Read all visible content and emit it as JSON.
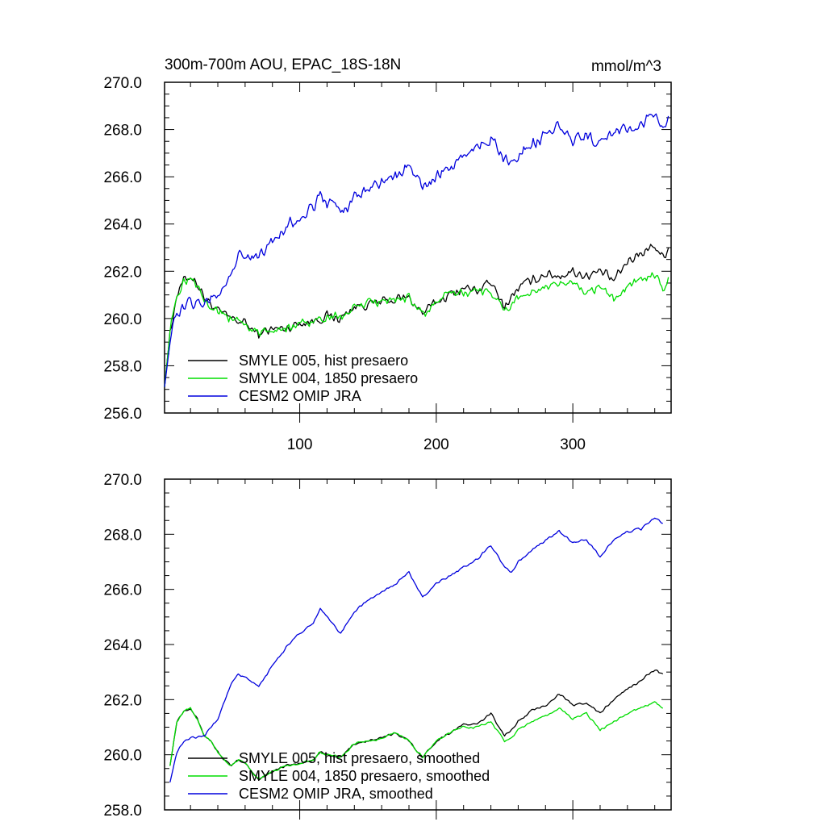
{
  "chart_data": [
    {
      "type": "line",
      "title": "300m-700m AOU, EPAC_18S-18N",
      "units": "mmol/m^3",
      "xlim": [
        1,
        372
      ],
      "ylim": [
        256.0,
        270.0
      ],
      "x_ticks": [
        100,
        200,
        300
      ],
      "y_ticks": [
        "256.0",
        "258.0",
        "260.0",
        "262.0",
        "264.0",
        "266.0",
        "268.0",
        "270.0"
      ],
      "legend_position": "lower-left",
      "series": [
        {
          "name": "SMYLE 005, hist presaero",
          "color": "#000000",
          "keypoints": [
            [
              1,
              257.1
            ],
            [
              5,
              259.4
            ],
            [
              10,
              261.0
            ],
            [
              15,
              261.6
            ],
            [
              20,
              261.8
            ],
            [
              25,
              261.5
            ],
            [
              30,
              260.9
            ],
            [
              35,
              260.6
            ],
            [
              40,
              260.3
            ],
            [
              50,
              260.0
            ],
            [
              60,
              259.8
            ],
            [
              70,
              259.3
            ],
            [
              75,
              259.5
            ],
            [
              90,
              259.6
            ],
            [
              100,
              259.8
            ],
            [
              110,
              259.9
            ],
            [
              120,
              260.1
            ],
            [
              130,
              260.0
            ],
            [
              140,
              260.5
            ],
            [
              150,
              260.6
            ],
            [
              160,
              260.7
            ],
            [
              170,
              260.8
            ],
            [
              180,
              260.9
            ],
            [
              190,
              260.2
            ],
            [
              200,
              260.7
            ],
            [
              210,
              261.0
            ],
            [
              220,
              261.3
            ],
            [
              230,
              261.2
            ],
            [
              240,
              261.5
            ],
            [
              250,
              260.5
            ],
            [
              255,
              260.9
            ],
            [
              260,
              261.3
            ],
            [
              270,
              261.6
            ],
            [
              280,
              261.9
            ],
            [
              290,
              261.8
            ],
            [
              300,
              262.0
            ],
            [
              310,
              261.8
            ],
            [
              320,
              262.0
            ],
            [
              330,
              261.6
            ],
            [
              340,
              262.4
            ],
            [
              350,
              262.8
            ],
            [
              360,
              263.1
            ],
            [
              366,
              262.6
            ],
            [
              370,
              263.0
            ]
          ],
          "noise": 0.25
        },
        {
          "name": "SMYLE 004, 1850 presaero",
          "color": "#00dd00",
          "keypoints": [
            [
              1,
              257.1
            ],
            [
              5,
              259.4
            ],
            [
              10,
              261.0
            ],
            [
              15,
              261.6
            ],
            [
              20,
              261.8
            ],
            [
              25,
              261.5
            ],
            [
              30,
              260.9
            ],
            [
              35,
              260.6
            ],
            [
              40,
              260.3
            ],
            [
              50,
              260.0
            ],
            [
              60,
              259.8
            ],
            [
              70,
              259.3
            ],
            [
              75,
              259.5
            ],
            [
              90,
              259.6
            ],
            [
              100,
              259.8
            ],
            [
              110,
              259.9
            ],
            [
              120,
              260.1
            ],
            [
              130,
              260.0
            ],
            [
              140,
              260.5
            ],
            [
              150,
              260.6
            ],
            [
              160,
              260.7
            ],
            [
              170,
              260.8
            ],
            [
              180,
              260.9
            ],
            [
              190,
              260.2
            ],
            [
              200,
              260.7
            ],
            [
              210,
              261.0
            ],
            [
              220,
              261.1
            ],
            [
              230,
              261.2
            ],
            [
              240,
              261.2
            ],
            [
              250,
              260.3
            ],
            [
              255,
              260.6
            ],
            [
              260,
              260.9
            ],
            [
              270,
              261.1
            ],
            [
              280,
              261.3
            ],
            [
              290,
              261.4
            ],
            [
              300,
              261.5
            ],
            [
              310,
              261.1
            ],
            [
              320,
              261.3
            ],
            [
              330,
              260.9
            ],
            [
              340,
              261.4
            ],
            [
              350,
              261.7
            ],
            [
              360,
              261.8
            ],
            [
              366,
              261.2
            ],
            [
              370,
              261.8
            ]
          ],
          "noise": 0.25
        },
        {
          "name": "CESM2 OMIP JRA",
          "color": "#0000dd",
          "keypoints": [
            [
              1,
              257.1
            ],
            [
              5,
              259.0
            ],
            [
              10,
              260.3
            ],
            [
              15,
              260.4
            ],
            [
              20,
              260.7
            ],
            [
              30,
              260.6
            ],
            [
              40,
              261.0
            ],
            [
              50,
              261.9
            ],
            [
              55,
              262.8
            ],
            [
              60,
              262.6
            ],
            [
              70,
              262.6
            ],
            [
              80,
              263.2
            ],
            [
              90,
              263.9
            ],
            [
              100,
              264.3
            ],
            [
              110,
              264.7
            ],
            [
              115,
              265.3
            ],
            [
              120,
              264.9
            ],
            [
              130,
              264.5
            ],
            [
              140,
              265.1
            ],
            [
              150,
              265.5
            ],
            [
              160,
              265.8
            ],
            [
              170,
              266.0
            ],
            [
              180,
              266.5
            ],
            [
              190,
              265.5
            ],
            [
              200,
              266.0
            ],
            [
              210,
              266.4
            ],
            [
              220,
              266.9
            ],
            [
              230,
              267.2
            ],
            [
              240,
              267.6
            ],
            [
              250,
              266.8
            ],
            [
              255,
              266.6
            ],
            [
              260,
              267.0
            ],
            [
              270,
              267.3
            ],
            [
              280,
              267.8
            ],
            [
              290,
              268.1
            ],
            [
              300,
              267.6
            ],
            [
              310,
              267.8
            ],
            [
              320,
              267.3
            ],
            [
              330,
              267.9
            ],
            [
              340,
              268.1
            ],
            [
              350,
              268.2
            ],
            [
              360,
              268.7
            ],
            [
              366,
              268.0
            ],
            [
              370,
              268.4
            ]
          ],
          "noise": 0.3
        }
      ]
    },
    {
      "type": "line",
      "title": "",
      "units": "",
      "xlim": [
        1,
        372
      ],
      "ylim": [
        258.0,
        270.0
      ],
      "x_ticks": [
        100,
        200,
        300
      ],
      "y_ticks": [
        "258.0",
        "260.0",
        "262.0",
        "264.0",
        "266.0",
        "268.0",
        "270.0"
      ],
      "legend_position": "lower-left",
      "series": [
        {
          "name": "SMYLE 005, hist presaero, smoothed",
          "color": "#000000",
          "keypoints": [
            [
              5,
              259.6
            ],
            [
              10,
              261.2
            ],
            [
              15,
              261.6
            ],
            [
              20,
              261.7
            ],
            [
              25,
              261.3
            ],
            [
              30,
              260.7
            ],
            [
              35,
              260.5
            ],
            [
              40,
              260.1
            ],
            [
              45,
              259.8
            ],
            [
              50,
              259.6
            ],
            [
              55,
              259.8
            ],
            [
              60,
              259.7
            ],
            [
              70,
              259.1
            ],
            [
              80,
              259.4
            ],
            [
              90,
              259.6
            ],
            [
              100,
              259.7
            ],
            [
              110,
              259.8
            ],
            [
              115,
              260.1
            ],
            [
              120,
              260.0
            ],
            [
              130,
              259.9
            ],
            [
              140,
              260.4
            ],
            [
              150,
              260.5
            ],
            [
              160,
              260.6
            ],
            [
              170,
              260.8
            ],
            [
              180,
              260.5
            ],
            [
              190,
              259.9
            ],
            [
              200,
              260.5
            ],
            [
              210,
              260.8
            ],
            [
              220,
              261.1
            ],
            [
              230,
              261.1
            ],
            [
              240,
              261.5
            ],
            [
              250,
              260.7
            ],
            [
              255,
              260.9
            ],
            [
              260,
              261.2
            ],
            [
              270,
              261.6
            ],
            [
              280,
              261.8
            ],
            [
              290,
              262.2
            ],
            [
              300,
              261.8
            ],
            [
              310,
              261.9
            ],
            [
              320,
              261.5
            ],
            [
              330,
              262.0
            ],
            [
              340,
              262.4
            ],
            [
              350,
              262.7
            ],
            [
              360,
              263.1
            ],
            [
              366,
              262.9
            ]
          ],
          "noise": 0.05
        },
        {
          "name": "SMYLE 004, 1850 presaero, smoothed",
          "color": "#00dd00",
          "keypoints": [
            [
              5,
              259.6
            ],
            [
              10,
              261.2
            ],
            [
              15,
              261.6
            ],
            [
              20,
              261.7
            ],
            [
              25,
              261.3
            ],
            [
              30,
              260.7
            ],
            [
              35,
              260.5
            ],
            [
              40,
              260.1
            ],
            [
              45,
              259.8
            ],
            [
              50,
              259.6
            ],
            [
              55,
              259.8
            ],
            [
              60,
              259.7
            ],
            [
              70,
              259.1
            ],
            [
              80,
              259.4
            ],
            [
              90,
              259.6
            ],
            [
              100,
              259.7
            ],
            [
              110,
              259.8
            ],
            [
              115,
              260.1
            ],
            [
              120,
              260.0
            ],
            [
              130,
              259.9
            ],
            [
              140,
              260.4
            ],
            [
              150,
              260.5
            ],
            [
              160,
              260.6
            ],
            [
              170,
              260.8
            ],
            [
              180,
              260.5
            ],
            [
              190,
              259.9
            ],
            [
              200,
              260.5
            ],
            [
              210,
              260.8
            ],
            [
              220,
              261.0
            ],
            [
              230,
              261.0
            ],
            [
              240,
              261.2
            ],
            [
              250,
              260.5
            ],
            [
              255,
              260.6
            ],
            [
              260,
              260.9
            ],
            [
              270,
              261.2
            ],
            [
              280,
              261.4
            ],
            [
              290,
              261.7
            ],
            [
              300,
              261.3
            ],
            [
              310,
              261.5
            ],
            [
              320,
              260.9
            ],
            [
              330,
              261.2
            ],
            [
              340,
              261.5
            ],
            [
              350,
              261.7
            ],
            [
              360,
              261.9
            ],
            [
              366,
              261.7
            ]
          ],
          "noise": 0.05
        },
        {
          "name": "CESM2 OMIP JRA, smoothed",
          "color": "#0000dd",
          "keypoints": [
            [
              5,
              259.0
            ],
            [
              10,
              260.1
            ],
            [
              15,
              260.5
            ],
            [
              20,
              260.6
            ],
            [
              30,
              260.7
            ],
            [
              40,
              261.3
            ],
            [
              50,
              262.6
            ],
            [
              55,
              262.9
            ],
            [
              60,
              262.8
            ],
            [
              70,
              262.5
            ],
            [
              80,
              263.2
            ],
            [
              90,
              263.9
            ],
            [
              100,
              264.4
            ],
            [
              110,
              264.8
            ],
            [
              115,
              265.3
            ],
            [
              120,
              265.0
            ],
            [
              130,
              264.4
            ],
            [
              140,
              265.2
            ],
            [
              150,
              265.6
            ],
            [
              160,
              265.9
            ],
            [
              170,
              266.2
            ],
            [
              180,
              266.6
            ],
            [
              190,
              265.7
            ],
            [
              200,
              266.2
            ],
            [
              210,
              266.5
            ],
            [
              220,
              266.8
            ],
            [
              230,
              267.1
            ],
            [
              240,
              267.6
            ],
            [
              250,
              266.8
            ],
            [
              255,
              266.6
            ],
            [
              260,
              267.0
            ],
            [
              270,
              267.4
            ],
            [
              280,
              267.8
            ],
            [
              290,
              268.1
            ],
            [
              300,
              267.7
            ],
            [
              310,
              267.8
            ],
            [
              320,
              267.2
            ],
            [
              330,
              267.8
            ],
            [
              340,
              268.1
            ],
            [
              350,
              268.2
            ],
            [
              360,
              268.6
            ],
            [
              366,
              268.4
            ]
          ],
          "noise": 0.05
        }
      ]
    }
  ]
}
